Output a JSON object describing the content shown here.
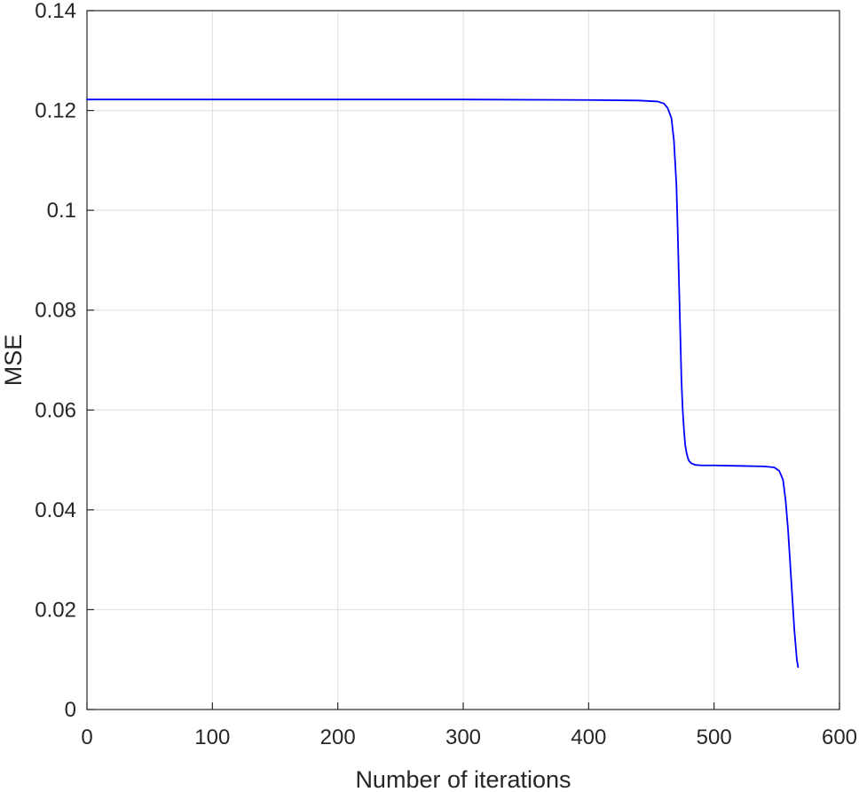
{
  "chart_data": {
    "type": "line",
    "title": "",
    "xlabel": "Number of iterations",
    "ylabel": "MSE",
    "xlim": [
      0,
      600
    ],
    "ylim": [
      0,
      0.14
    ],
    "xticks": [
      0,
      100,
      200,
      300,
      400,
      500,
      600
    ],
    "xtick_labels": [
      "0",
      "100",
      "200",
      "300",
      "400",
      "500",
      "600"
    ],
    "yticks": [
      0,
      0.02,
      0.04,
      0.06,
      0.08,
      0.1,
      0.12,
      0.14
    ],
    "ytick_labels": [
      "0",
      "0.02",
      "0.04",
      "0.06",
      "0.08",
      "0.1",
      "0.12",
      "0.14"
    ],
    "grid": true,
    "legend": "none",
    "series": [
      {
        "color": "#0000ff",
        "x": [
          0,
          100,
          200,
          300,
          400,
          440,
          455,
          460,
          463,
          466,
          468,
          470,
          471,
          472,
          473,
          474,
          475,
          476,
          477,
          478,
          479,
          480,
          482,
          485,
          490,
          500,
          520,
          540,
          548,
          552,
          555,
          557,
          559,
          560,
          561,
          562,
          563,
          564,
          565,
          566,
          567
        ],
        "y": [
          0.1222,
          0.1222,
          0.1222,
          0.1222,
          0.1221,
          0.122,
          0.1218,
          0.1214,
          0.1205,
          0.1185,
          0.114,
          0.105,
          0.096,
          0.086,
          0.076,
          0.066,
          0.06,
          0.056,
          0.053,
          0.0515,
          0.0505,
          0.0498,
          0.0493,
          0.049,
          0.0489,
          0.0489,
          0.0488,
          0.0487,
          0.0485,
          0.0478,
          0.046,
          0.042,
          0.036,
          0.032,
          0.028,
          0.024,
          0.02,
          0.016,
          0.013,
          0.01,
          0.0085
        ]
      }
    ]
  }
}
